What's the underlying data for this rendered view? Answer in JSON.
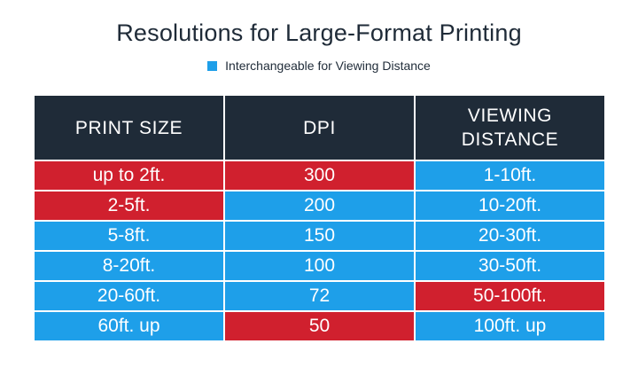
{
  "title": "Resolutions for Large-Format Printing",
  "legend": {
    "label": "Interchangeable for Viewing Distance",
    "color": "#1e9fe9"
  },
  "colors": {
    "header_bg": "#1f2b38",
    "red": "#d0202e",
    "blue": "#1e9fe9"
  },
  "table": {
    "headers": [
      "PRINT SIZE",
      "DPI",
      "VIEWING DISTANCE"
    ],
    "rows": [
      {
        "cells": [
          "up to 2ft.",
          "300",
          "1-10ft."
        ],
        "colors": [
          "red",
          "red",
          "blue"
        ]
      },
      {
        "cells": [
          "2-5ft.",
          "200",
          "10-20ft."
        ],
        "colors": [
          "red",
          "blue",
          "blue"
        ]
      },
      {
        "cells": [
          "5-8ft.",
          "150",
          "20-30ft."
        ],
        "colors": [
          "blue",
          "blue",
          "blue"
        ]
      },
      {
        "cells": [
          "8-20ft.",
          "100",
          "30-50ft."
        ],
        "colors": [
          "blue",
          "blue",
          "blue"
        ]
      },
      {
        "cells": [
          "20-60ft.",
          "72",
          "50-100ft."
        ],
        "colors": [
          "blue",
          "blue",
          "red"
        ]
      },
      {
        "cells": [
          "60ft. up",
          "50",
          "100ft. up"
        ],
        "colors": [
          "blue",
          "red",
          "blue"
        ]
      }
    ]
  }
}
